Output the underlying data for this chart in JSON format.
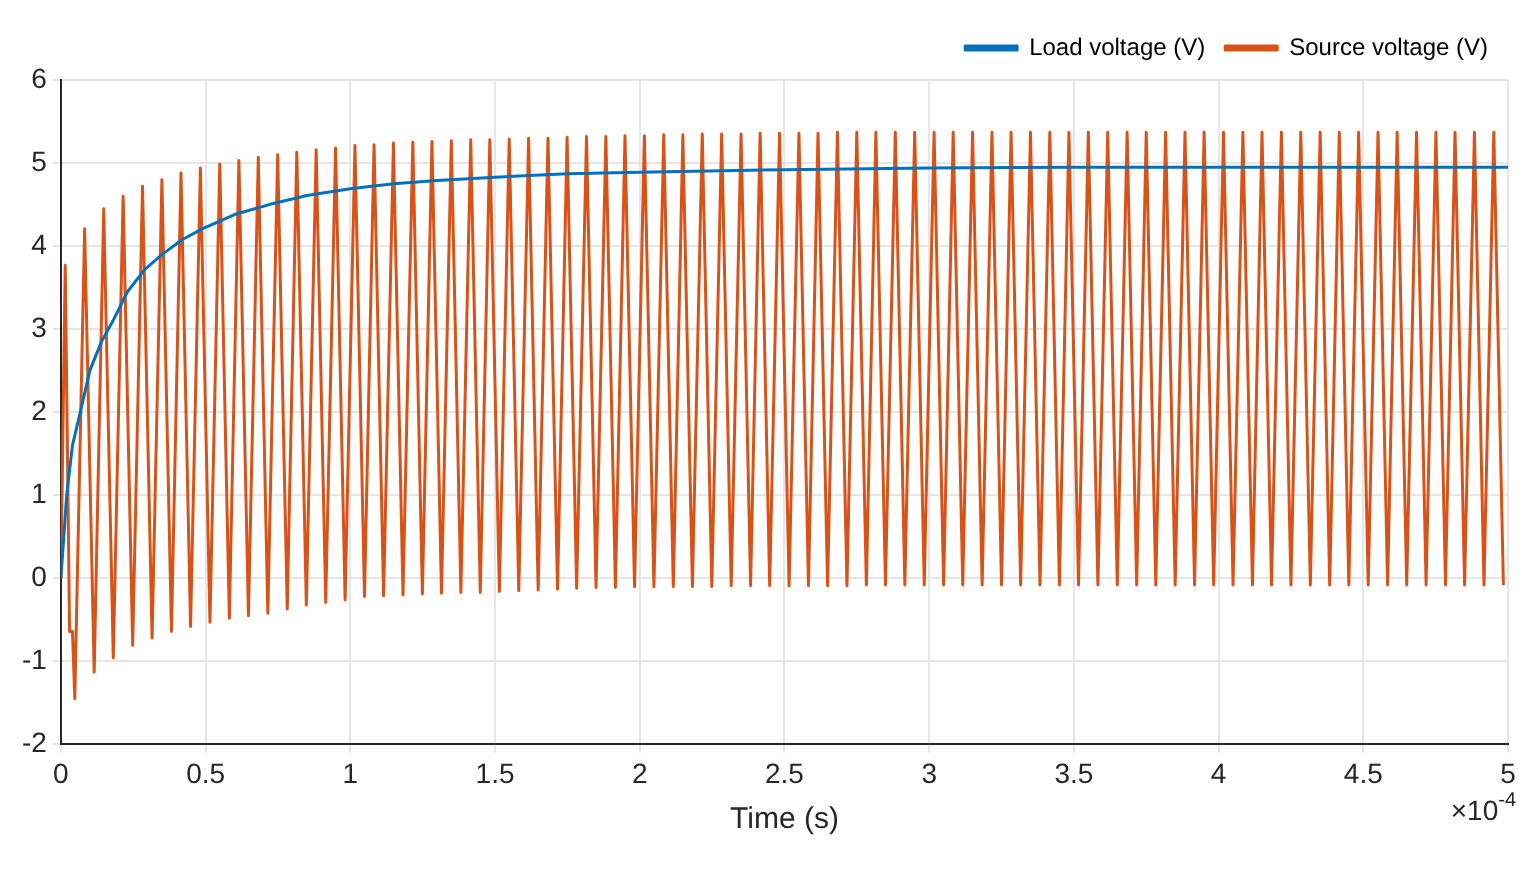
{
  "chart_data": {
    "type": "line",
    "xlabel": "Time (s)",
    "annotations": [
      "×10$^{-4}$"
    ],
    "xlim": [
      0,
      5
    ],
    "xticks": [
      0,
      0.5,
      1,
      1.5,
      2,
      2.5,
      3,
      3.5,
      4,
      4.5,
      5
    ],
    "ylim": [
      -2,
      6
    ],
    "yticks": [
      -2,
      -1,
      0,
      1,
      2,
      3,
      4,
      5,
      6
    ],
    "grid": true,
    "legend": "top right",
    "marker": "none",
    "line_style": "solid",
    "series": [
      {
        "name": "Load voltage (V)",
        "color": "#0072bd",
        "x": [
          0,
          0.02,
          0.04,
          0.067,
          0.1,
          0.14,
          0.18,
          0.23,
          0.29,
          0.35,
          0.42,
          0.49,
          0.6,
          0.72,
          0.85,
          1.0,
          1.15,
          1.3,
          1.5,
          1.75,
          2.0,
          2.5,
          3.0,
          3.5,
          4.0,
          4.5,
          5.0
        ],
        "values": [
          0,
          1.0,
          1.6,
          2.0,
          2.5,
          2.85,
          3.1,
          3.45,
          3.72,
          3.9,
          4.08,
          4.21,
          4.38,
          4.5,
          4.61,
          4.69,
          4.75,
          4.79,
          4.83,
          4.87,
          4.89,
          4.92,
          4.94,
          4.95,
          4.95,
          4.95,
          4.95
        ]
      },
      {
        "name": "Source voltage (V)",
        "color": "#d95319",
        "x": [
          0,
          0.015,
          0.03,
          0.04,
          0.048,
          0.082,
          0.115,
          0.148,
          0.181,
          0.215,
          0.248,
          0.282,
          0.315,
          0.349,
          0.382,
          0.415,
          0.448,
          0.482,
          0.515,
          0.549,
          0.582,
          0.615,
          0.648,
          0.682,
          0.715,
          0.749,
          0.782,
          0.815,
          0.848,
          0.882,
          0.915,
          0.949,
          0.982,
          1.016,
          1.049,
          1.082,
          1.115,
          1.149,
          1.182,
          1.216,
          1.249,
          1.282,
          1.315,
          1.349,
          1.382,
          1.416,
          1.449,
          1.482,
          1.515,
          1.549,
          1.582,
          1.616,
          1.649,
          1.683,
          1.716,
          1.749,
          1.782,
          1.816,
          1.849,
          1.883,
          1.916,
          1.949,
          1.982,
          2.016,
          2.049,
          2.083,
          2.116,
          2.149,
          2.182,
          2.216,
          2.249,
          2.283,
          2.316,
          2.35,
          2.383,
          2.416,
          2.449,
          2.483,
          2.516,
          2.55,
          2.583,
          2.616,
          2.649,
          2.683,
          2.716,
          2.75,
          2.783,
          2.816,
          2.849,
          2.883,
          2.916,
          2.95,
          2.983,
          3.017,
          3.05,
          3.083,
          3.116,
          3.15,
          3.183,
          3.217,
          3.25,
          3.283,
          3.316,
          3.35,
          3.383,
          3.417,
          3.45,
          3.483,
          3.516,
          3.55,
          3.583,
          3.617,
          3.65,
          3.684,
          3.717,
          3.75,
          3.783,
          3.817,
          3.85,
          3.884,
          3.917,
          3.95,
          3.983,
          4.017,
          4.05,
          4.084,
          4.117,
          4.15,
          4.183,
          4.217,
          4.25,
          4.284,
          4.317,
          4.351,
          4.384,
          4.417,
          4.45,
          4.484,
          4.517,
          4.551,
          4.584,
          4.617,
          4.65,
          4.684,
          4.717,
          4.751,
          4.784,
          4.817,
          4.85,
          4.884,
          4.917,
          4.951,
          4.984
        ],
        "values": [
          0,
          3.77,
          -0.64,
          -0.64,
          -1.45,
          4.21,
          -1.13,
          4.45,
          -0.96,
          4.6,
          -0.81,
          4.72,
          -0.72,
          4.8,
          -0.64,
          4.88,
          -0.58,
          4.94,
          -0.53,
          4.99,
          -0.48,
          5.03,
          -0.45,
          5.07,
          -0.42,
          5.1,
          -0.37,
          5.13,
          -0.32,
          5.16,
          -0.29,
          5.18,
          -0.26,
          5.21,
          -0.22,
          5.22,
          -0.21,
          5.24,
          -0.2,
          5.25,
          -0.19,
          5.26,
          -0.18,
          5.27,
          -0.17,
          5.28,
          -0.17,
          5.28,
          -0.16,
          5.29,
          -0.15,
          5.3,
          -0.14,
          5.3,
          -0.13,
          5.31,
          -0.12,
          5.32,
          -0.11,
          5.32,
          -0.11,
          5.33,
          -0.1,
          5.33,
          -0.1,
          5.34,
          -0.1,
          5.34,
          -0.1,
          5.35,
          -0.1,
          5.35,
          -0.09,
          5.35,
          -0.09,
          5.36,
          -0.09,
          5.36,
          -0.09,
          5.36,
          -0.09,
          5.36,
          -0.09,
          5.37,
          -0.09,
          5.37,
          -0.08,
          5.37,
          -0.08,
          5.37,
          -0.08,
          5.37,
          -0.08,
          5.37,
          -0.08,
          5.37,
          -0.08,
          5.37,
          -0.08,
          5.37,
          -0.08,
          5.37,
          -0.08,
          5.37,
          -0.08,
          5.37,
          -0.08,
          5.37,
          -0.08,
          5.37,
          -0.08,
          5.37,
          -0.08,
          5.37,
          -0.08,
          5.37,
          -0.08,
          5.37,
          -0.08,
          5.37,
          -0.08,
          5.37,
          -0.08,
          5.37,
          -0.08,
          5.37,
          -0.08,
          5.37,
          -0.08,
          5.37,
          -0.08,
          5.37,
          -0.08,
          5.37,
          -0.08,
          5.37,
          -0.08,
          5.37,
          -0.08,
          5.37,
          -0.08,
          5.37,
          -0.08,
          5.37,
          -0.08,
          5.37,
          -0.08,
          5.37,
          -0.08,
          5.37,
          -0.08,
          5.37,
          -0.08
        ]
      }
    ]
  }
}
